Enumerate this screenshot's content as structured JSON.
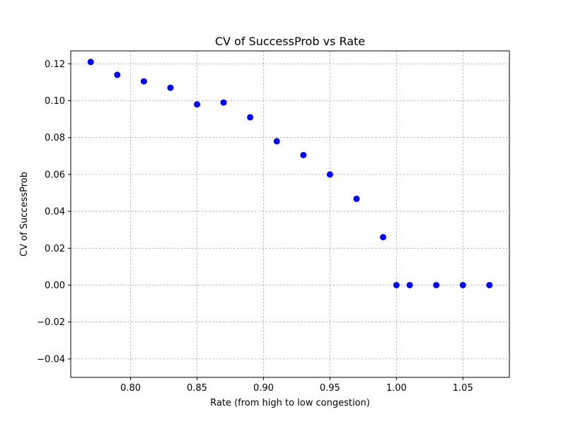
{
  "chart_data": {
    "type": "scatter",
    "title": "CV of SuccessProb vs Rate",
    "xlabel": "Rate (from high to low congestion)",
    "ylabel": "CV of SuccessProb",
    "xlim": [
      0.755,
      1.085
    ],
    "ylim": [
      -0.05,
      0.127
    ],
    "xticks": [
      0.8,
      0.85,
      0.9,
      0.95,
      1.0,
      1.05
    ],
    "xtick_labels": [
      "0.80",
      "0.85",
      "0.90",
      "0.95",
      "1.00",
      "1.05"
    ],
    "yticks": [
      -0.04,
      -0.02,
      0.0,
      0.02,
      0.04,
      0.06,
      0.08,
      0.1,
      0.12
    ],
    "ytick_labels": [
      "−0.04",
      "−0.02",
      "0.00",
      "0.02",
      "0.04",
      "0.06",
      "0.08",
      "0.10",
      "0.12"
    ],
    "grid": true,
    "marker_color": "#0000ff",
    "points": [
      {
        "x": 0.77,
        "y": 0.121
      },
      {
        "x": 0.79,
        "y": 0.114
      },
      {
        "x": 0.81,
        "y": 0.1105
      },
      {
        "x": 0.83,
        "y": 0.107
      },
      {
        "x": 0.85,
        "y": 0.098
      },
      {
        "x": 0.87,
        "y": 0.099
      },
      {
        "x": 0.89,
        "y": 0.091
      },
      {
        "x": 0.91,
        "y": 0.078
      },
      {
        "x": 0.93,
        "y": 0.0705
      },
      {
        "x": 0.95,
        "y": 0.06
      },
      {
        "x": 0.97,
        "y": 0.0468
      },
      {
        "x": 0.99,
        "y": 0.026
      },
      {
        "x": 1.0,
        "y": 0.0
      },
      {
        "x": 1.01,
        "y": 0.0
      },
      {
        "x": 1.03,
        "y": 0.0
      },
      {
        "x": 1.05,
        "y": 0.0
      },
      {
        "x": 1.07,
        "y": 0.0
      }
    ]
  }
}
